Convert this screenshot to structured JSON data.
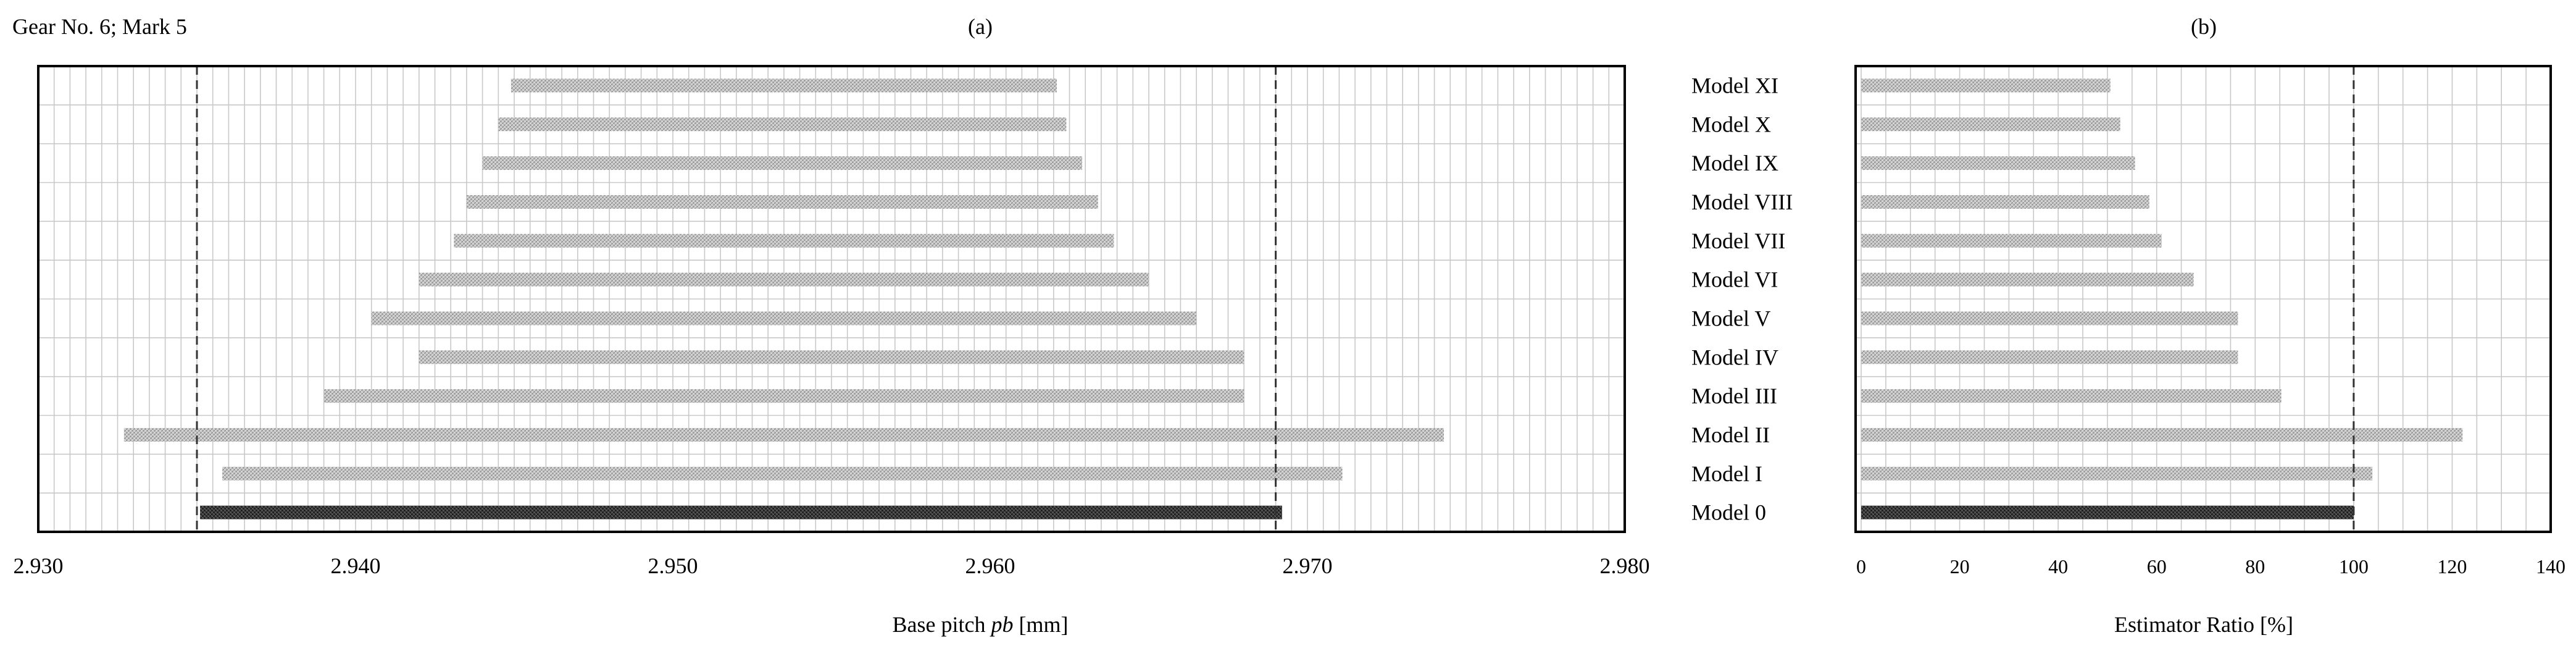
{
  "figure": {
    "gear_label": "Gear No. 6; Mark 5"
  },
  "chart_data": [
    {
      "type": "bar",
      "orientation": "horizontal-range",
      "title": "(a)",
      "xlabel_parts": [
        "Base pitch ",
        "pb",
        " [mm]"
      ],
      "xlim": [
        2.93,
        2.98
      ],
      "xticks": [
        2.93,
        2.94,
        2.95,
        2.96,
        2.97,
        2.98
      ],
      "xtick_labels": [
        "2.930",
        "2.940",
        "2.950",
        "2.960",
        "2.970",
        "2.980"
      ],
      "reference_lines": [
        2.935,
        2.969
      ],
      "grid": true,
      "categories": [
        "Model XI",
        "Model X",
        "Model IX",
        "Model VIII",
        "Model VII",
        "Model VI",
        "Model V",
        "Model IV",
        "Model III",
        "Model II",
        "Model I",
        "Model 0"
      ],
      "ranges": [
        [
          2.9449,
          2.9621
        ],
        [
          2.9445,
          2.9624
        ],
        [
          2.944,
          2.9629
        ],
        [
          2.9435,
          2.9634
        ],
        [
          2.9431,
          2.9639
        ],
        [
          2.942,
          2.965
        ],
        [
          2.9405,
          2.9665
        ],
        [
          2.942,
          2.968
        ],
        [
          2.939,
          2.968
        ],
        [
          2.9327,
          2.9743
        ],
        [
          2.9358,
          2.9711
        ],
        [
          2.9351,
          2.9692
        ]
      ],
      "highlight_category": "Model 0",
      "colors": {
        "bar": "#b8b8b8",
        "highlight": "#3a3a3a"
      }
    },
    {
      "type": "bar",
      "orientation": "horizontal",
      "title": "(b)",
      "xlabel": "Estimator Ratio [%]",
      "xlim": [
        0,
        140
      ],
      "xticks": [
        0,
        20,
        40,
        60,
        80,
        100,
        120,
        140
      ],
      "xtick_labels": [
        "0",
        "20",
        "40",
        "60",
        "80",
        "100",
        "120",
        "140"
      ],
      "reference_lines": [
        100
      ],
      "grid": true,
      "categories": [
        "Model XI",
        "Model X",
        "Model IX",
        "Model VIII",
        "Model VII",
        "Model VI",
        "Model V",
        "Model IV",
        "Model III",
        "Model II",
        "Model I",
        "Model 0"
      ],
      "values": [
        50.6,
        52.6,
        55.6,
        58.5,
        61.0,
        67.5,
        76.5,
        76.5,
        85.3,
        122.1,
        103.8,
        100.0
      ],
      "highlight_category": "Model 0",
      "colors": {
        "bar": "#b8b8b8",
        "highlight": "#3a3a3a"
      }
    }
  ]
}
